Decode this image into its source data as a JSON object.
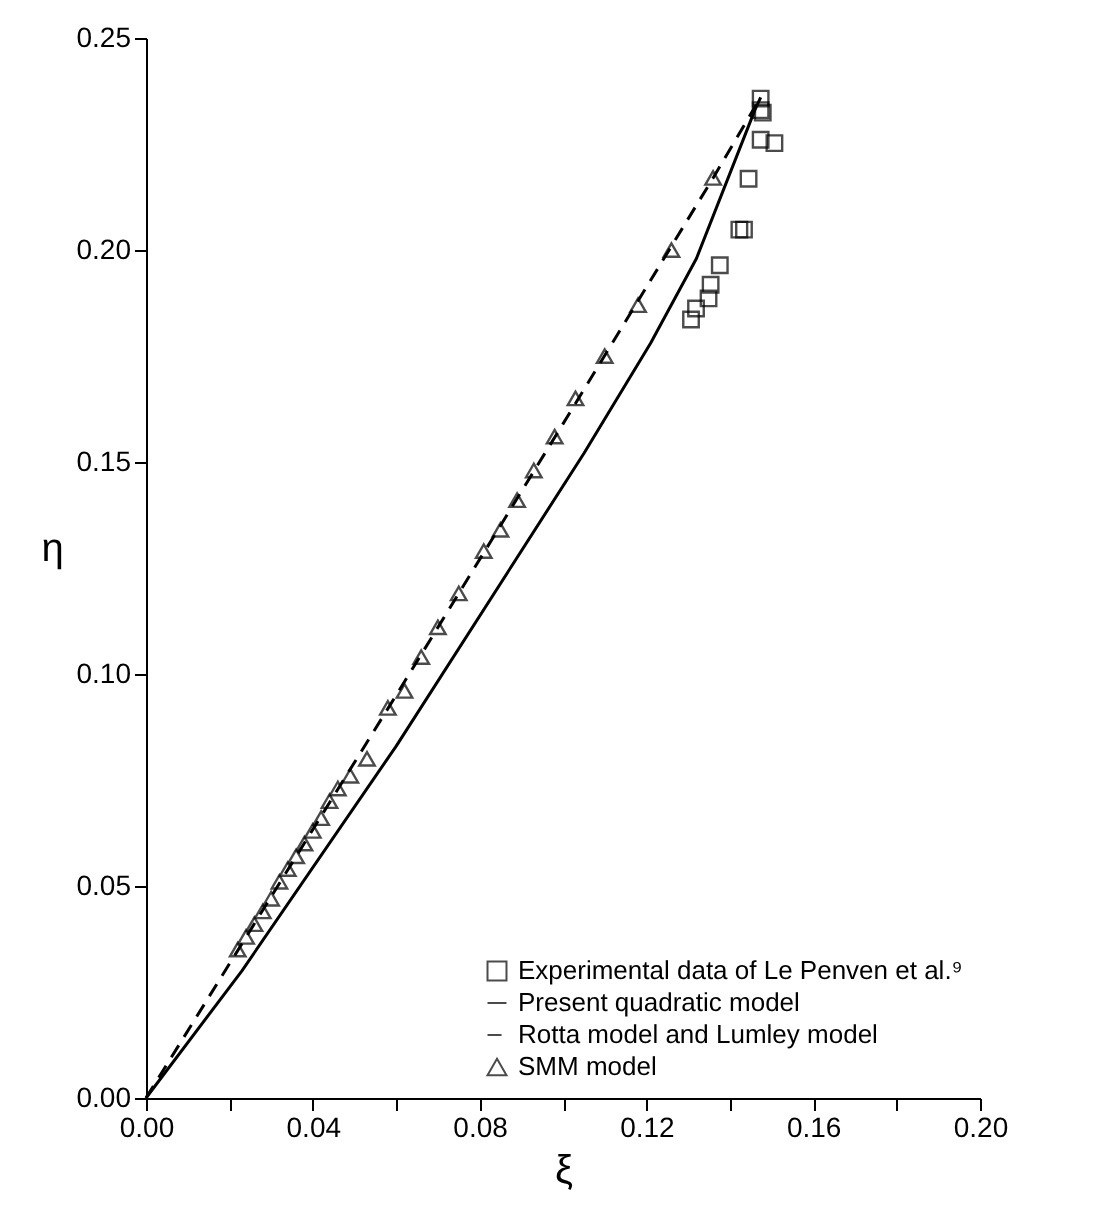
{
  "chart_data": {
    "type": "scatter",
    "xlabel": "ξ",
    "ylabel": "η",
    "xlim": [
      0,
      0.2
    ],
    "ylim": [
      0,
      0.25
    ],
    "xticks": [
      {
        "value": 0,
        "label": "0.00"
      },
      {
        "value": 0.02,
        "label": null
      },
      {
        "value": 0.04,
        "label": "0.04"
      },
      {
        "value": 0.06,
        "label": null
      },
      {
        "value": 0.08,
        "label": "0.08"
      },
      {
        "value": 0.1,
        "label": null
      },
      {
        "value": 0.12,
        "label": "0.12"
      },
      {
        "value": 0.14,
        "label": null
      },
      {
        "value": 0.16,
        "label": "0.16"
      },
      {
        "value": 0.18,
        "label": null
      },
      {
        "value": 0.2,
        "label": "0.20"
      }
    ],
    "yticks": [
      {
        "value": 0,
        "label": "0.00"
      },
      {
        "value": 0.05,
        "label": "0.05"
      },
      {
        "value": 0.1,
        "label": "0.10"
      },
      {
        "value": 0.15,
        "label": "0.15"
      },
      {
        "value": 0.2,
        "label": "0.20"
      },
      {
        "value": 0.25,
        "label": "0.25"
      }
    ],
    "grid": false,
    "legend": "bottom right",
    "series": [
      {
        "name": "Experimental data of Le Penven et al.⁹",
        "marker": "square",
        "color": "#000000",
        "x": [
          0.1474,
          0.1474,
          0.1479,
          0.1474,
          0.1507,
          0.1445,
          0.1423,
          0.1434,
          0.1376,
          0.1354,
          0.1349,
          0.1319,
          0.1307
        ],
        "values": [
          0.2357,
          0.233,
          0.2324,
          0.226,
          0.2252,
          0.2168,
          0.2048,
          0.2048,
          0.1964,
          0.1918,
          0.1886,
          0.1862,
          0.1836
        ]
      },
      {
        "name": "Present quadratic model",
        "type": "line",
        "line_style": "solid",
        "color": "#000000",
        "x": [
          0,
          0.023,
          0.06,
          0.105,
          0.121,
          0.132,
          0.146,
          0.1474
        ],
        "values": [
          0,
          0.03,
          0.083,
          0.152,
          0.178,
          0.198,
          0.233,
          0.236
        ]
      },
      {
        "name": "Rotta model and Lumley model",
        "type": "line",
        "line_style": "dashed",
        "color": "#000000",
        "x": [
          0,
          0.0215,
          0.06,
          0.1,
          0.136,
          0.1474
        ],
        "values": [
          0,
          0.034,
          0.095,
          0.159,
          0.217,
          0.236
        ]
      },
      {
        "name": "SMM model",
        "marker": "triangle",
        "color": "#000000",
        "x": [
          0.022,
          0.024,
          0.026,
          0.028,
          0.03,
          0.032,
          0.034,
          0.036,
          0.038,
          0.04,
          0.042,
          0.044,
          0.046,
          0.049,
          0.053,
          0.058,
          0.062,
          0.066,
          0.07,
          0.075,
          0.081,
          0.085,
          0.089,
          0.093,
          0.098,
          0.103,
          0.11,
          0.118,
          0.126,
          0.136
        ],
        "values": [
          0.035,
          0.038,
          0.041,
          0.044,
          0.047,
          0.051,
          0.054,
          0.057,
          0.06,
          0.063,
          0.066,
          0.07,
          0.073,
          0.076,
          0.08,
          0.092,
          0.096,
          0.104,
          0.111,
          0.119,
          0.129,
          0.134,
          0.141,
          0.148,
          0.156,
          0.165,
          0.175,
          0.187,
          0.2,
          0.217
        ]
      }
    ]
  }
}
